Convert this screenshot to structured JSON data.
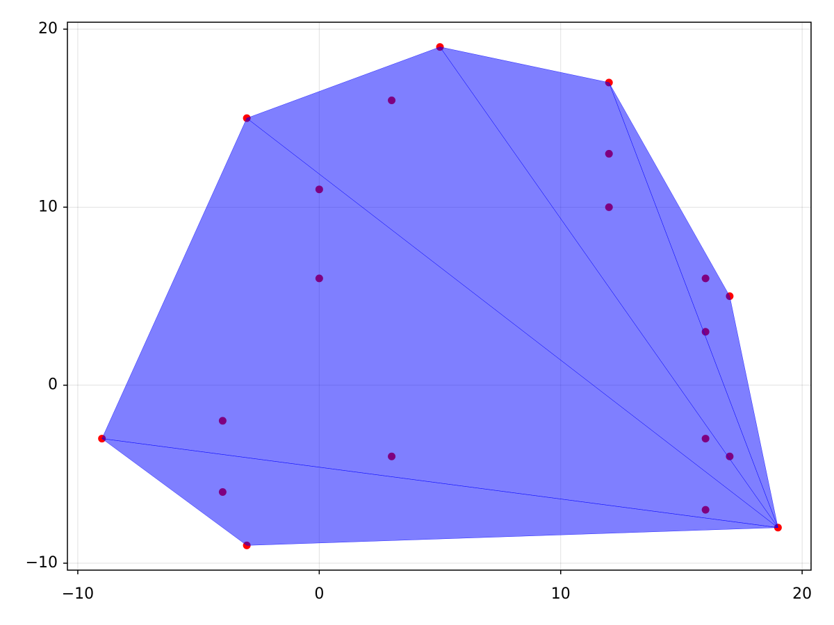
{
  "chart_data": {
    "type": "scatter",
    "x": [
      -9,
      -4,
      -4,
      -3,
      -3,
      0,
      0,
      3,
      3,
      5,
      12,
      12,
      12,
      16,
      16,
      17,
      16,
      17,
      16,
      19
    ],
    "y": [
      -3,
      -2,
      -6,
      -9,
      15,
      11,
      6,
      16,
      -4,
      19,
      17,
      13,
      10,
      6,
      3,
      5,
      -3,
      -4,
      -7,
      -8
    ],
    "color": "#ff0000",
    "mesh": {
      "color": "#0000ff",
      "alpha": 0.5,
      "triangles": [
        {
          "x": [
            19,
            -9,
            -3
          ],
          "y": [
            -8,
            -3,
            -9
          ]
        },
        {
          "x": [
            19,
            -3,
            -9
          ],
          "y": [
            -8,
            15,
            -3
          ]
        },
        {
          "x": [
            19,
            5,
            -3
          ],
          "y": [
            -8,
            19,
            15
          ]
        },
        {
          "x": [
            19,
            12,
            5
          ],
          "y": [
            -8,
            17,
            19
          ]
        },
        {
          "x": [
            19,
            17,
            12
          ],
          "y": [
            -8,
            5,
            17
          ]
        }
      ]
    },
    "xlim": [
      -10.43,
      20.37
    ],
    "ylim": [
      -10.39,
      20.39
    ],
    "xticks": [
      {
        "value": -10,
        "label": "−10"
      },
      0,
      10,
      20
    ],
    "yticks": [
      {
        "value": -10,
        "label": "−10"
      },
      0,
      10,
      20
    ],
    "grid": true
  }
}
